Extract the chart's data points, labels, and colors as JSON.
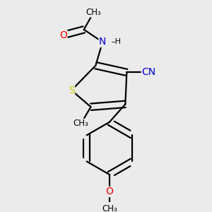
{
  "bg_color": "#ebebeb",
  "atom_colors": {
    "C": "#000000",
    "N": "#0000cd",
    "O": "#ff0000",
    "S": "#cccc00",
    "H": "#000000"
  },
  "bond_color": "#000000",
  "bond_width": 1.6,
  "dbo": 0.05,
  "figsize": [
    3.0,
    3.0
  ],
  "dpi": 100,
  "xlim": [
    -1.5,
    1.5
  ],
  "ylim": [
    -1.6,
    1.3
  ]
}
